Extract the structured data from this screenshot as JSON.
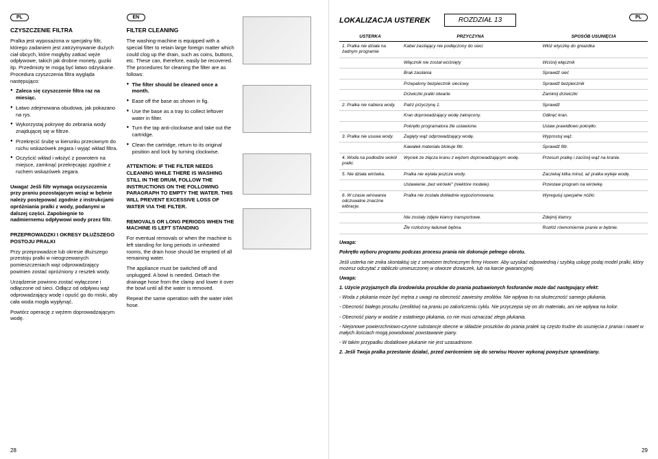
{
  "left": {
    "lang1": "PL",
    "lang2": "EN",
    "pl": {
      "title": "CZYSZCZENIE FILTRA",
      "intro": "Pralka jest wyposażona w specjalny filtr, którego zadaniem jest zatrzymywanie dużych ciał obcych, które mogłyby zatkać węże odpływowe, takich jak drobne monety, guziki itp. Przedmioty te mogą być łatwo odzyskane. Procedura czyszczenia filtra wygląda następująco:",
      "b1": "Zaleca się czyszczenie filtra raz na miesiąc.",
      "b2": "Łatwo zdejmowana obudowa, jak pokazano na rys.",
      "b3": "Wykorzystaj pokrywę do zebrania wody znajdującej się w filtrze.",
      "b4": "Przekręcić śrubę w kierunku przeciwnym do ruchu wskazówek zegara i wyjąć wkład filtra.",
      "b5": "Oczyścić wkład i włożyć z powrotem na miejsce, zamknąć przekręcając zgodnie z ruchem wskazówek zegara.",
      "warn": "Uwaga! Jeśli filtr wymaga oczyszczenia przy praniu pozostającym wciąż w bębnie należy postępować zgodnie z instrukcjami opróżniania pralki z wody, podanymi w dalszej części. Zapobiegnie to nadmiernemu odpływowi wody przez filtr.",
      "moveTitle": "PRZEPROWADZKI I OKRESY DŁUŻSZEGO POSTOJU PRALKI",
      "m1": "Przy przeprowadzce lub okresie dłuższego przestoju pralki w nieogrzewanych pomieszczeniach wąż odprowadzający powinien zostać opróżniony z resztek wody.",
      "m2": "Urządzenie powinno zostać wyłączone i odłączone od sieci. Odłącz od odpływu wąż odprowadzający wodę i opuść go do miski, aby cała woda mogła wypłynąć.",
      "m3": "Powtórz operację z wężem doprowadzającym wodę."
    },
    "en": {
      "title": "FILTER CLEANING",
      "intro": "The washing-machine is equipped with a special filter to retain large foreign matter which could clog up the drain, such as coins, buttons, etc. These can, therefore, easily be recovered. The procedures for cleaning the filter are as follows:",
      "b1": "The filter should be cleaned once a month.",
      "b2": "Ease off the base as shown in fig.",
      "b3": "Use the base as a tray to collect leftover water in filter.",
      "b4": "Turn the tap anti-clockwise and take out the cartridge.",
      "b5": "Clean the cartridge, return to its original position and lock by turning clockwise.",
      "warn": "ATTENTION: IF THE FILTER NEEDS CLEANING WHILE THERE IS WASHING STILL IN THE DRUM, FOLLOW THE INSTRUCTIONS ON THE FOLLOWING PARAGRAPH TO EMPTY THE WATER. THIS WILL PREVENT EXCESSIVE LOSS OF WATER VIA THE FILTER.",
      "moveTitle": "REMOVALS OR LONG PERIODS WHEN THE MACHINE IS LEFT STANDING",
      "m1": "For eventual removals or when the machine is left standing for long periods in unheated rooms, the drain hose should be emptied of all remaining water.",
      "m2": "The appliance must be switched off and unplugged. A bowl is needed. Detach the drainage hose from the clamp and lower it over the bowl until all the water is removed.",
      "m3": "Repeat the same operation with the water inlet hose."
    },
    "pageNum": "28"
  },
  "right": {
    "lang": "PL",
    "title": "LOKALIZACJA USTEREK",
    "chapter": "ROZDZIAŁ 13",
    "th1": "USTERKA",
    "th2": "PRZYCZYNA",
    "th3": "SPOSÓB USUNIĘCIA",
    "rows": [
      {
        "f": "1. Pralka nie działa na żadnym programie",
        "c": "Kabel zasilający nie podłączony do sieci",
        "r": "Włóż wtyczkę do gniazdka"
      },
      {
        "f": "",
        "c": "Włącznik nie został wciśnięty",
        "r": "Wciśnij włącznik"
      },
      {
        "f": "",
        "c": "Brak zasilania",
        "r": "Sprawdź sieć"
      },
      {
        "f": "",
        "c": "Przepalony bezpiecznik sieciowy.",
        "r": "Sprawdź bezpiecznik"
      },
      {
        "f": "",
        "c": "Drzwiczki pralki otwarte",
        "r": "Zamknij drzwiczki"
      },
      {
        "f": "2. Pralka nie nabiera wody.",
        "c": "Patrz przyczynę 1.",
        "r": "Sprawdź"
      },
      {
        "f": "",
        "c": "Kran doprowadzający wodę zakręcony.",
        "r": "Odkręć kran."
      },
      {
        "f": "",
        "c": "Pokrętło programatora źle ustawione.",
        "r": "Ustaw prawidłowo pokrętło."
      },
      {
        "f": "3. Pralka nie usuwa wody.",
        "c": "Zagięty wąż odprowadzający wodę.",
        "r": "Wyprostuj wąż."
      },
      {
        "f": "",
        "c": "Kawałek materiału blokuje filtr.",
        "r": "Sprawdź filtr."
      },
      {
        "f": "4. Woda na podłodze wokół pralki.",
        "c": "Wyciek ze złącza kranu z wężem doprowadzającym wodę.",
        "r": "Przesuń pralkę i zaciśnij wąż na kranie."
      },
      {
        "f": "5. Nie działa wirówka.",
        "c": "Pralka nie wylała jeszcze wody.",
        "r": "Zaczekaj kilka minut, aż pralka wyleje wodę."
      },
      {
        "f": "",
        "c": "Ustawienie „bez wirówki\" (niektóre modele).",
        "r": "Przestaw program na wirówkę."
      },
      {
        "f": "6. W czasie wirowania odczuwalne znaczne wibracje.",
        "c": "Pralka nie została dokładnie wypoziomowana.",
        "r": "Wyreguluj specjalne nóżki."
      },
      {
        "f": "",
        "c": "Nie zostały zdjęte klamry transportowe.",
        "r": "Zdejmij klamry."
      },
      {
        "f": "",
        "c": "Źle rozłożony ładunek bębna.",
        "r": "Rozłóż równomiernie pranie w bębnie."
      }
    ],
    "note1": "Uwaga:",
    "note2": "Pokrętło wyboru programu podczas procesu prania nie dokonuje pełnego obrotu.",
    "note3": "Jeśli usterka nie znika skontaktuj się z serwisem technicznym firmy Hoover. Aby uzyskać odpowiednią i szybką usługę podaj model pralki, który możesz odczytać z tabliczki umieszczonej w otworze drzwiczek, lub na karcie gwarancyjnej.",
    "note4": "Uwaga:",
    "note5": "1. Użycie przyjaznych dla środowiska proszków do prania pozbawionych fosforanów może dać następujący efekt:",
    "note6": "- Woda z płukania może być mętna z uwagi na obecność zawiesiny zeolitów. Nie wpływa to na skuteczność samego płukania.",
    "note7": "- Obecność białego proszku (zeolitów) na praniu po zakończeniu cyklu. Nie przyczepia się on do materiału, ani nie wpływa na kolor.",
    "note8": "- Obecność piany w wodzie z ostatniego płukania, co nie musi oznaczać złego płukania.",
    "note9": "- Niejonowe powierzchniowo-czynne substancje obecne w składzie proszków do prania pralek są często trudne do usunięcia z prania i nawet w małych ilościach mogą powodować powstawanie piany.",
    "note10": "- W takim przypadku dodatkowe płukanie nie jest uzasadnione.",
    "note11": "2. Jeśli Twoja pralka przestanie działać, przed zwróceniem się do serwisu Hoover wykonaj powyższe sprawdziany.",
    "pageNum": "29"
  }
}
